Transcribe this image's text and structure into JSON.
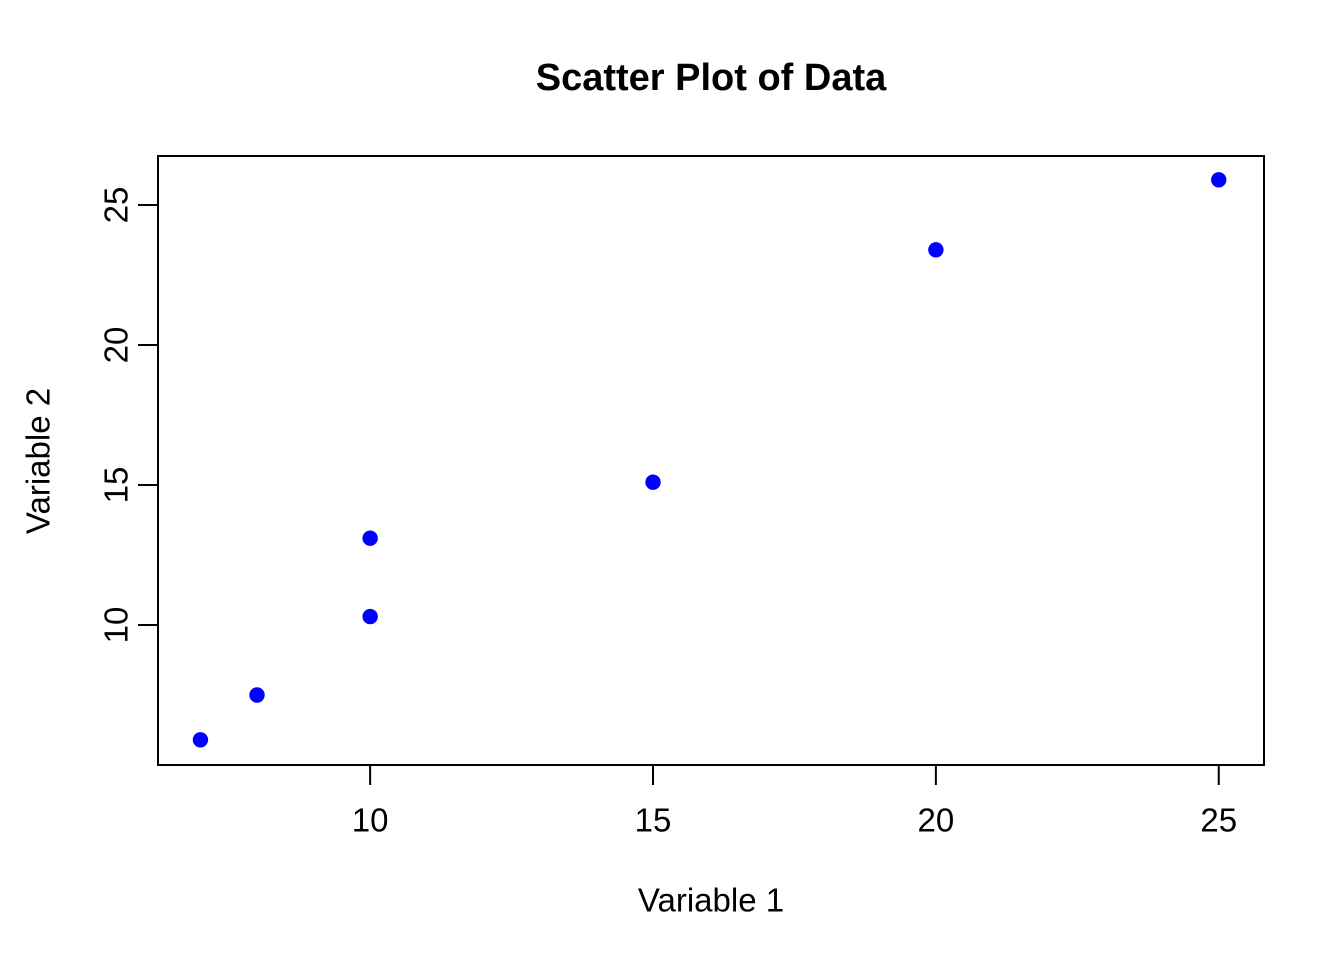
{
  "chart_data": {
    "type": "scatter",
    "title": "Scatter Plot of Data",
    "xlabel": "Variable 1",
    "ylabel": "Variable 2",
    "points": [
      {
        "x": 7,
        "y": 5.9
      },
      {
        "x": 8,
        "y": 7.5
      },
      {
        "x": 10,
        "y": 10.3
      },
      {
        "x": 10,
        "y": 13.1
      },
      {
        "x": 15,
        "y": 15.1
      },
      {
        "x": 20,
        "y": 23.4
      },
      {
        "x": 25,
        "y": 25.9
      }
    ],
    "x_ticks": [
      10,
      15,
      20,
      25
    ],
    "y_ticks": [
      10,
      15,
      20,
      25
    ],
    "x_tick_labels": [
      "10",
      "15",
      "20",
      "25"
    ],
    "y_tick_labels": [
      "10",
      "15",
      "20",
      "25"
    ],
    "xlim": [
      6.25,
      25.8
    ],
    "ylim": [
      5.0,
      26.75
    ],
    "grid": false,
    "legend_position": "none",
    "point_style": "filled-circle",
    "point_color": "#0000FF",
    "axis_color": "#000000",
    "background_color": "#FFFFFF"
  }
}
